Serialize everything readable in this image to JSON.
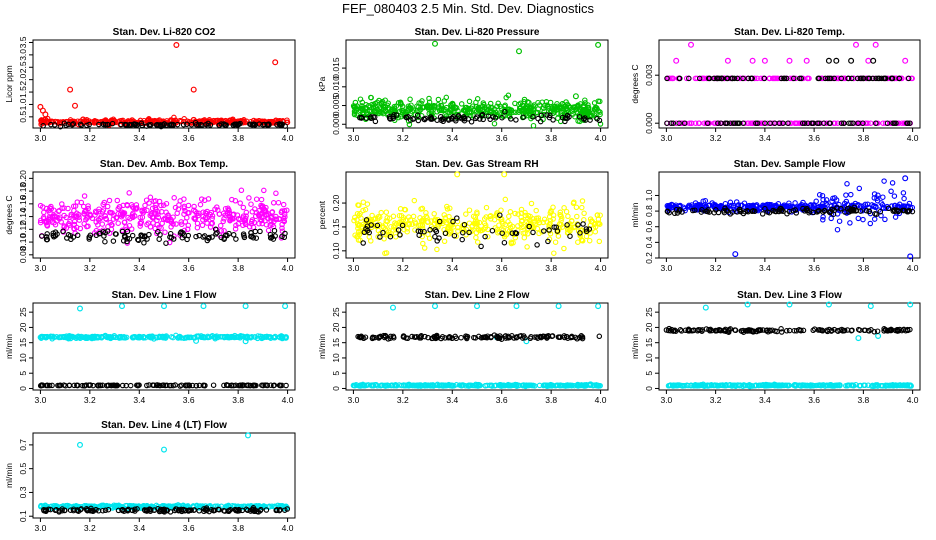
{
  "figure_title": "FEF_080403  2.5 Min. Std. Dev. Diagnostics",
  "chart_data": [
    {
      "type": "scatter",
      "title": "Stan. Dev. Li-820 CO2",
      "ylabel": "Licor ppm",
      "xlim": [
        2.97,
        4.03
      ],
      "ylim": [
        0.05,
        3.6
      ],
      "xticks": [
        "3.0",
        "3.2",
        "3.4",
        "3.6",
        "3.8",
        "4.0"
      ],
      "yticks": [
        "0.5",
        "1.0",
        "1.5",
        "2.0",
        "2.5",
        "3.0",
        "3.5"
      ],
      "series": [
        {
          "color": "#ff0000",
          "n": 320,
          "base": 0.3,
          "spread": 0.12,
          "outliers": [
            [
              3.0,
              0.9
            ],
            [
              3.01,
              0.75
            ],
            [
              3.02,
              0.6
            ],
            [
              3.12,
              1.6
            ],
            [
              3.14,
              0.95
            ],
            [
              3.55,
              3.4
            ],
            [
              3.62,
              1.6
            ],
            [
              3.95,
              2.7
            ]
          ]
        },
        {
          "color": "#000000",
          "n": 110,
          "base": 0.18,
          "spread": 0.06,
          "outliers": []
        }
      ]
    },
    {
      "type": "scatter",
      "title": "Stan. Dev. Li-820 Pressure",
      "ylabel": "kPa",
      "xlim": [
        2.97,
        4.03
      ],
      "ylim": [
        -0.001,
        0.0225
      ],
      "xticks": [
        "3.0",
        "3.2",
        "3.4",
        "3.6",
        "3.8",
        "4.0"
      ],
      "yticks": [
        "0.000",
        "0.005",
        "0.010",
        "0.015"
      ],
      "series": [
        {
          "color": "#00c000",
          "n": 480,
          "base": 0.0038,
          "spread": 0.003,
          "outliers": [
            [
              3.33,
              0.0215
            ],
            [
              3.67,
              0.0195
            ],
            [
              3.99,
              0.0212
            ],
            [
              3.9,
              0.0075
            ]
          ]
        },
        {
          "color": "#000000",
          "n": 90,
          "base": 0.0015,
          "spread": 0.0012,
          "outliers": []
        }
      ]
    },
    {
      "type": "scatter",
      "title": "Stan. Dev. Li-820 Temp.",
      "ylabel": "degrees C",
      "xlim": [
        2.97,
        4.03
      ],
      "ylim": [
        -0.0003,
        0.0052
      ],
      "xticks": [
        "3.0",
        "3.2",
        "3.4",
        "3.6",
        "3.8",
        "4.0"
      ],
      "yticks": [
        "0.000",
        "0.003"
      ],
      "series": [
        {
          "color": "#ff00ff",
          "n": 260,
          "levels": [
            0.0,
            0.0028
          ],
          "spread": 0,
          "outliers": [
            [
              3.04,
              0.0039
            ],
            [
              3.1,
              0.0049
            ],
            [
              3.25,
              0.0039
            ],
            [
              3.35,
              0.0039
            ],
            [
              3.4,
              0.0039
            ],
            [
              3.5,
              0.0039
            ],
            [
              3.57,
              0.0039
            ],
            [
              3.77,
              0.0049
            ],
            [
              3.82,
              0.0039
            ],
            [
              3.85,
              0.0049
            ],
            [
              3.97,
              0.0039
            ]
          ]
        },
        {
          "color": "#000000",
          "n": 120,
          "levels": [
            0.0,
            0.0028
          ],
          "spread": 0,
          "outliers": [
            [
              3.66,
              0.0039
            ],
            [
              3.69,
              0.0039
            ],
            [
              3.75,
              0.0039
            ],
            [
              3.84,
              0.0039
            ]
          ]
        }
      ]
    },
    {
      "type": "scatter",
      "title": "Stan. Dev. Amb. Box Temp.",
      "ylabel": "degrees C",
      "xlim": [
        2.97,
        4.03
      ],
      "ylim": [
        0.075,
        0.21
      ],
      "xticks": [
        "3.0",
        "3.2",
        "3.4",
        "3.6",
        "3.8",
        "4.0"
      ],
      "yticks": [
        "0.08",
        "0.10",
        "0.12",
        "0.14",
        "0.16",
        "0.18",
        "0.20"
      ],
      "series": [
        {
          "color": "#ff00ff",
          "n": 420,
          "base": 0.14,
          "spread": 0.033,
          "outliers": []
        },
        {
          "color": "#000000",
          "n": 110,
          "base": 0.11,
          "spread": 0.012,
          "outliers": []
        }
      ]
    },
    {
      "type": "scatter",
      "title": "Stan. Dev. Gas Stream RH",
      "ylabel": "percent",
      "xlim": [
        2.97,
        4.03
      ],
      "ylim": [
        0.085,
        0.265
      ],
      "xticks": [
        "3.0",
        "3.2",
        "3.4",
        "3.6",
        "3.8",
        "4.0"
      ],
      "yticks": [
        "0.10",
        "0.15",
        "0.20"
      ],
      "series": [
        {
          "color": "#ffff00",
          "n": 420,
          "base": 0.155,
          "spread": 0.045,
          "outliers": [
            [
              3.42,
              0.26
            ],
            [
              3.61,
              0.26
            ]
          ]
        },
        {
          "color": "#000000",
          "n": 60,
          "base": 0.14,
          "spread": 0.035,
          "outliers": []
        }
      ]
    },
    {
      "type": "scatter",
      "title": "Stan. Dev. Sample Flow",
      "ylabel": "ml/min",
      "xlim": [
        2.97,
        4.03
      ],
      "ylim": [
        0.2,
        1.3
      ],
      "xticks": [
        "3.0",
        "3.2",
        "3.4",
        "3.6",
        "3.8",
        "4.0"
      ],
      "yticks": [
        "0.2",
        "0.4",
        "0.6",
        "0.8",
        "1.0"
      ],
      "series": [
        {
          "color": "#0000ff",
          "n": 380,
          "base": 0.85,
          "spread": 0.06,
          "wide_after": 3.6,
          "wide_spread": 0.3,
          "outliers": [
            [
              3.28,
              0.25
            ],
            [
              3.97,
              1.22
            ],
            [
              3.99,
              0.22
            ]
          ]
        },
        {
          "color": "#000000",
          "n": 120,
          "base": 0.8,
          "spread": 0.04,
          "outliers": []
        }
      ]
    },
    {
      "type": "scatter",
      "title": "Stan. Dev. Line 1 Flow",
      "ylabel": "ml/min",
      "xlim": [
        2.97,
        4.03
      ],
      "ylim": [
        -0.5,
        28
      ],
      "xticks": [
        "3.0",
        "3.2",
        "3.4",
        "3.6",
        "3.8",
        "4.0"
      ],
      "yticks": [
        "0",
        "5",
        "10",
        "15",
        "20",
        "25"
      ],
      "series": [
        {
          "color": "#00e5ee",
          "n": 300,
          "base": 16.8,
          "spread": 0.5,
          "outliers": [
            [
              3.16,
              26.2
            ],
            [
              3.33,
              27
            ],
            [
              3.5,
              27
            ],
            [
              3.66,
              27
            ],
            [
              3.83,
              27
            ],
            [
              3.99,
              27
            ],
            [
              3.83,
              15.5
            ],
            [
              3.63,
              15.6
            ]
          ]
        },
        {
          "color": "#000000",
          "n": 140,
          "base": 1.0,
          "spread": 0.15,
          "outliers": []
        }
      ]
    },
    {
      "type": "scatter",
      "title": "Stan. Dev. Line 2 Flow",
      "ylabel": "ml/min",
      "xlim": [
        2.97,
        4.03
      ],
      "ylim": [
        -0.5,
        28
      ],
      "xticks": [
        "3.0",
        "3.2",
        "3.4",
        "3.6",
        "3.8",
        "4.0"
      ],
      "yticks": [
        "0",
        "5",
        "10",
        "15",
        "20",
        "25"
      ],
      "series": [
        {
          "color": "#00e5ee",
          "n": 300,
          "base": 1.0,
          "spread": 0.3,
          "outliers": [
            [
              3.16,
              26.5
            ],
            [
              3.33,
              27
            ],
            [
              3.5,
              27
            ],
            [
              3.66,
              27
            ],
            [
              3.83,
              27
            ],
            [
              3.99,
              27
            ],
            [
              3.58,
              16.8
            ],
            [
              3.7,
              15.5
            ]
          ]
        },
        {
          "color": "#000000",
          "n": 140,
          "base": 16.8,
          "spread": 0.6,
          "outliers": []
        }
      ]
    },
    {
      "type": "scatter",
      "title": "Stan. Dev. Line 3 Flow",
      "ylabel": "ml/min",
      "xlim": [
        2.97,
        4.03
      ],
      "ylim": [
        -0.5,
        28
      ],
      "xticks": [
        "3.0",
        "3.2",
        "3.4",
        "3.6",
        "3.8",
        "4.0"
      ],
      "yticks": [
        "0",
        "5",
        "10",
        "15",
        "20",
        "25"
      ],
      "series": [
        {
          "color": "#00e5ee",
          "n": 300,
          "base": 1.0,
          "spread": 0.3,
          "outliers": [
            [
              3.16,
              26.5
            ],
            [
              3.33,
              27.5
            ],
            [
              3.5,
              27.5
            ],
            [
              3.66,
              27.5
            ],
            [
              3.83,
              27
            ],
            [
              3.99,
              27.5
            ],
            [
              3.78,
              16.5
            ],
            [
              3.86,
              17.2
            ]
          ]
        },
        {
          "color": "#000000",
          "n": 150,
          "base": 19.0,
          "spread": 0.5,
          "outliers": []
        }
      ]
    },
    {
      "type": "scatter",
      "title": "Stan. Dev. Line 4 (LT) Flow",
      "ylabel": "ml/min",
      "xlim": [
        2.97,
        4.03
      ],
      "ylim": [
        0.085,
        0.8
      ],
      "xticks": [
        "3.0",
        "3.2",
        "3.4",
        "3.6",
        "3.8",
        "4.0"
      ],
      "yticks": [
        "0.1",
        "0.3",
        "0.5",
        "0.7"
      ],
      "series": [
        {
          "color": "#00e5ee",
          "n": 300,
          "base": 0.18,
          "spread": 0.015,
          "outliers": [
            [
              3.16,
              0.7
            ],
            [
              3.5,
              0.66
            ],
            [
              3.84,
              0.78
            ]
          ]
        },
        {
          "color": "#000000",
          "n": 150,
          "base": 0.15,
          "spread": 0.015,
          "outliers": []
        }
      ]
    }
  ]
}
